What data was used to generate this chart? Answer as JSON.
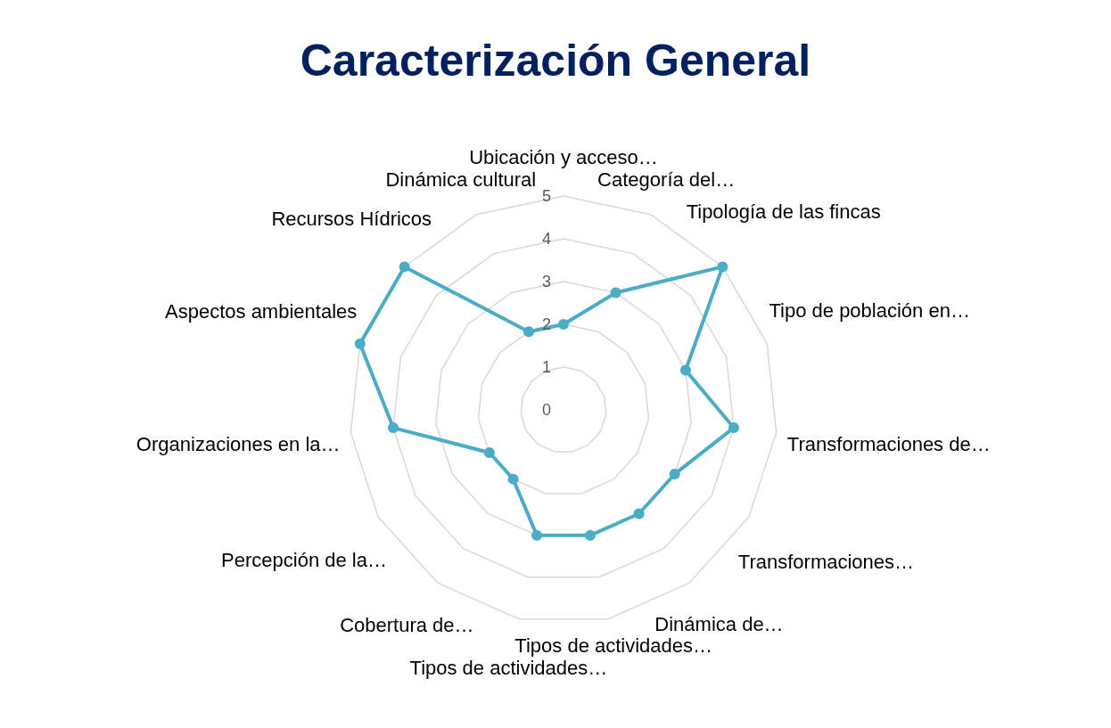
{
  "chart_data": {
    "type": "radar",
    "title": "Caracterización General",
    "categories": [
      "Ubicación y acceso…",
      "Categoría del…",
      "Tipología de las fincas",
      "Tipo de población en…",
      "Transformaciones de…",
      "Transformaciones…",
      "Dinámica de…",
      "Tipos de actividades…",
      "Tipos de actividades…",
      "Cobertura de…",
      "Percepción de la…",
      "Organizaciones en la…",
      "Aspectos ambientales",
      "Recursos Hídricos",
      "Dinámica cultural"
    ],
    "series": [
      {
        "color": "#4bacc6",
        "values": [
          2,
          3,
          5,
          3,
          4,
          3,
          3,
          3,
          3,
          2,
          2,
          4,
          5,
          5,
          2
        ]
      }
    ],
    "ylim": [
      0,
      5
    ],
    "yticks": [
      0,
      1,
      2,
      3,
      4,
      5
    ],
    "grid": true,
    "marker": "circle"
  }
}
